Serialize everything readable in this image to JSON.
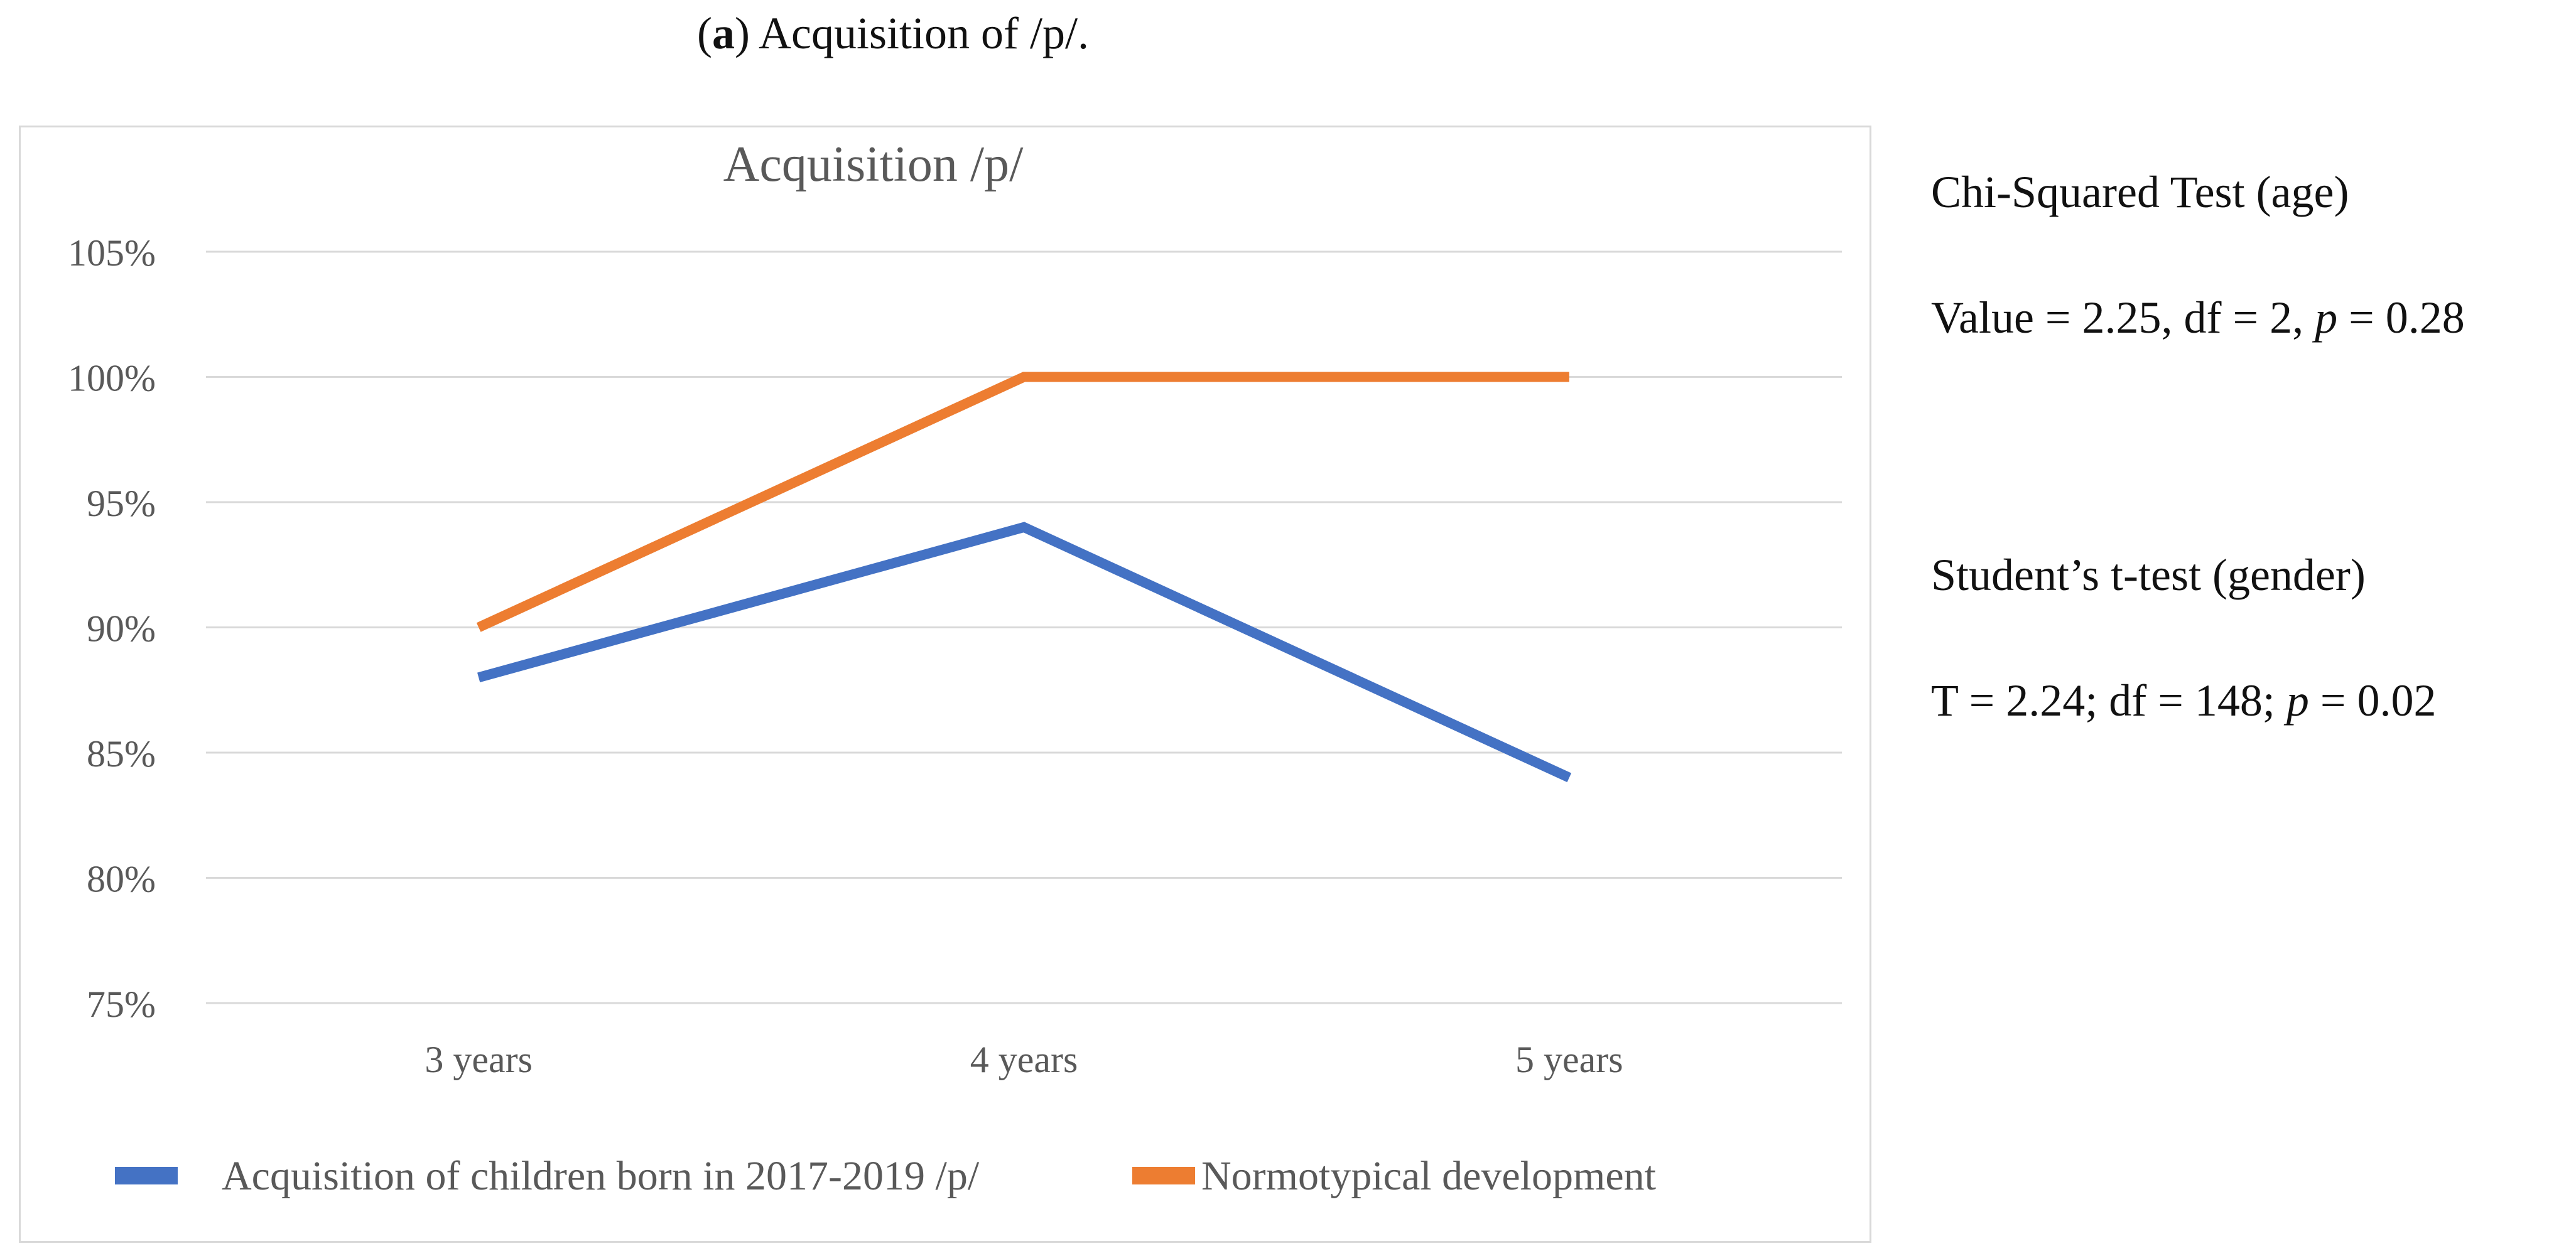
{
  "caption": {
    "label": "a",
    "text": ") Acquisition of /p/.",
    "open_paren": "("
  },
  "stats": {
    "chi_title": "Chi-Squared Test (age)",
    "chi_value_prefix": "Value = 2.25, df = 2, ",
    "chi_value_p": "p",
    "chi_value_suffix": " = 0.28",
    "t_title": "Student’s t-test (gender)",
    "t_value_prefix": "T = 2.24; df = 148; ",
    "t_value_p": "p",
    "t_value_suffix": " = 0.02"
  },
  "chart_data": {
    "type": "line",
    "title": "Acquisition /p/",
    "categories": [
      "3 years",
      "4 years",
      "5 years"
    ],
    "ylim": [
      75,
      105
    ],
    "yticks": [
      75,
      80,
      85,
      90,
      95,
      100,
      105
    ],
    "ytick_labels": [
      "75%",
      "80%",
      "85%",
      "90%",
      "95%",
      "100%",
      "105%"
    ],
    "grid": true,
    "legend_position": "bottom",
    "series": [
      {
        "name": "Acquisition of children born in 2017-2019 /p/",
        "values": [
          88,
          94,
          84
        ],
        "color": "#4472c4"
      },
      {
        "name": "Normotypical development",
        "values": [
          90,
          100,
          100
        ],
        "color": "#ed7d31"
      }
    ]
  }
}
